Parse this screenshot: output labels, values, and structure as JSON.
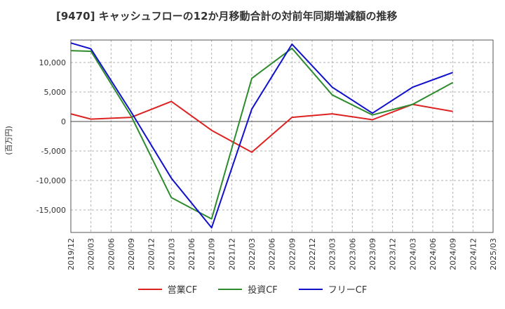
{
  "chart_data": {
    "type": "line",
    "title": "[9470]  キャッシュフローの12か月移動合計の対前年同期増減額の推移",
    "ylabel": "(百万円)",
    "xlabel": "",
    "ylim": [
      -18800,
      13800
    ],
    "yticks": [
      10000,
      5000,
      0,
      -5000,
      -10000,
      -15000
    ],
    "ytick_labels": [
      "10,000",
      "5,000",
      "0",
      "-5,000",
      "-10,000",
      "-15,000"
    ],
    "x_categories": [
      "2019/12",
      "2020/03",
      "2020/06",
      "2020/09",
      "2020/12",
      "2021/03",
      "2021/06",
      "2021/09",
      "2021/12",
      "2022/03",
      "2022/06",
      "2022/09",
      "2022/12",
      "2023/03",
      "2023/06",
      "2023/09",
      "2023/12",
      "2024/03",
      "2024/06",
      "2024/09",
      "2024/12",
      "2025/03"
    ],
    "grid": true,
    "legend_position": "bottom",
    "series": [
      {
        "name": "営業CF",
        "color": "#dd2222",
        "points": [
          [
            "2019/12",
            1300
          ],
          [
            "2020/03",
            400
          ],
          [
            "2020/09",
            700
          ],
          [
            "2021/03",
            3400
          ],
          [
            "2021/09",
            -1500
          ],
          [
            "2022/03",
            -5200
          ],
          [
            "2022/09",
            700
          ],
          [
            "2023/03",
            1300
          ],
          [
            "2023/09",
            300
          ],
          [
            "2024/03",
            2900
          ],
          [
            "2024/09",
            1700
          ]
        ]
      },
      {
        "name": "投資CF",
        "color": "#2e8b2e",
        "points": [
          [
            "2019/12",
            12000
          ],
          [
            "2020/03",
            11900
          ],
          [
            "2020/09",
            900
          ],
          [
            "2021/03",
            -12900
          ],
          [
            "2021/09",
            -16500
          ],
          [
            "2022/03",
            7300
          ],
          [
            "2022/09",
            12400
          ],
          [
            "2023/03",
            4500
          ],
          [
            "2023/09",
            1100
          ],
          [
            "2024/03",
            2900
          ],
          [
            "2024/09",
            6600
          ]
        ]
      },
      {
        "name": "フリーCF",
        "color": "#1111cc",
        "points": [
          [
            "2019/12",
            13300
          ],
          [
            "2020/03",
            12300
          ],
          [
            "2020/09",
            1600
          ],
          [
            "2021/03",
            -9600
          ],
          [
            "2021/09",
            -18000
          ],
          [
            "2022/03",
            2100
          ],
          [
            "2022/09",
            13100
          ],
          [
            "2023/03",
            5800
          ],
          [
            "2023/09",
            1400
          ],
          [
            "2024/03",
            5800
          ],
          [
            "2024/09",
            8300
          ]
        ]
      }
    ]
  }
}
